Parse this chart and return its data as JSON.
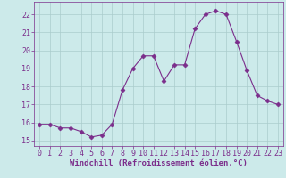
{
  "x": [
    0,
    1,
    2,
    3,
    4,
    5,
    6,
    7,
    8,
    9,
    10,
    11,
    12,
    13,
    14,
    15,
    16,
    17,
    18,
    19,
    20,
    21,
    22,
    23
  ],
  "y": [
    15.9,
    15.9,
    15.7,
    15.7,
    15.5,
    15.2,
    15.3,
    15.9,
    17.8,
    19.0,
    19.7,
    19.7,
    18.3,
    19.2,
    19.2,
    21.2,
    22.0,
    22.2,
    22.0,
    20.5,
    18.9,
    17.5,
    17.2,
    17.0
  ],
  "line_color": "#7b2d8b",
  "marker": "D",
  "marker_size": 2.5,
  "bg_color": "#cceaea",
  "grid_color": "#aacccc",
  "xlabel": "Windchill (Refroidissement éolien,°C)",
  "xlabel_fontsize": 6.5,
  "yticks": [
    15,
    16,
    17,
    18,
    19,
    20,
    21,
    22
  ],
  "xticks": [
    0,
    1,
    2,
    3,
    4,
    5,
    6,
    7,
    8,
    9,
    10,
    11,
    12,
    13,
    14,
    15,
    16,
    17,
    18,
    19,
    20,
    21,
    22,
    23
  ],
  "ylim": [
    14.7,
    22.7
  ],
  "xlim": [
    -0.5,
    23.5
  ],
  "tick_fontsize": 6,
  "tick_color": "#7b2d8b",
  "label_color": "#7b2d8b",
  "spine_color": "#7b2d8b"
}
